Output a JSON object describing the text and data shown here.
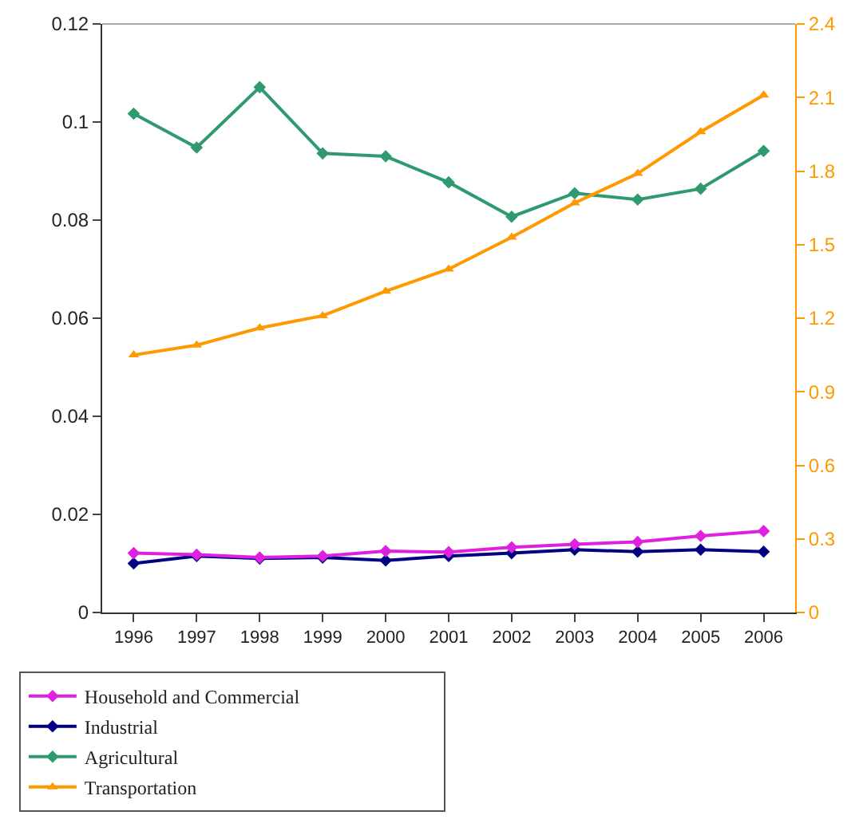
{
  "chart_data": {
    "type": "line",
    "categories": [
      "1996",
      "1997",
      "1998",
      "1999",
      "2000",
      "2001",
      "2002",
      "2003",
      "2004",
      "2005",
      "2006"
    ],
    "series": [
      {
        "name": "Household and Commercial",
        "color": "#e020e0",
        "marker": "diamond",
        "values": [
          0.0121,
          0.0118,
          0.0112,
          0.0115,
          0.0125,
          0.0123,
          0.0133,
          0.0139,
          0.0144,
          0.0156,
          0.0166
        ]
      },
      {
        "name": "Industrial",
        "color": "#000080",
        "marker": "diamond",
        "values": [
          0.01,
          0.0115,
          0.011,
          0.0112,
          0.0106,
          0.0115,
          0.0121,
          0.0128,
          0.0124,
          0.0128,
          0.0124
        ]
      },
      {
        "name": "Agricultural",
        "color": "#2e9a6e",
        "marker": "diamond",
        "values": [
          0.1017,
          0.0948,
          0.1071,
          0.0936,
          0.093,
          0.0877,
          0.0807,
          0.0855,
          0.0842,
          0.0864,
          0.0941
        ]
      },
      {
        "name": "Transportation",
        "color": "#ff9900",
        "marker": "triangle",
        "axis": "y2",
        "values": [
          1.05,
          1.09,
          1.16,
          1.21,
          1.31,
          1.4,
          1.53,
          1.67,
          1.79,
          1.96,
          2.11
        ]
      }
    ],
    "ylim": [
      0,
      0.12
    ],
    "yticks": [
      0,
      0.02,
      0.04,
      0.06,
      0.08,
      0.1,
      0.12
    ],
    "y2lim": [
      0,
      2.4
    ],
    "y2ticks": [
      0,
      0.3,
      0.6,
      0.9,
      1.2,
      1.5,
      1.8,
      2.1,
      2.4
    ],
    "grid": false,
    "legend": "bottom"
  }
}
